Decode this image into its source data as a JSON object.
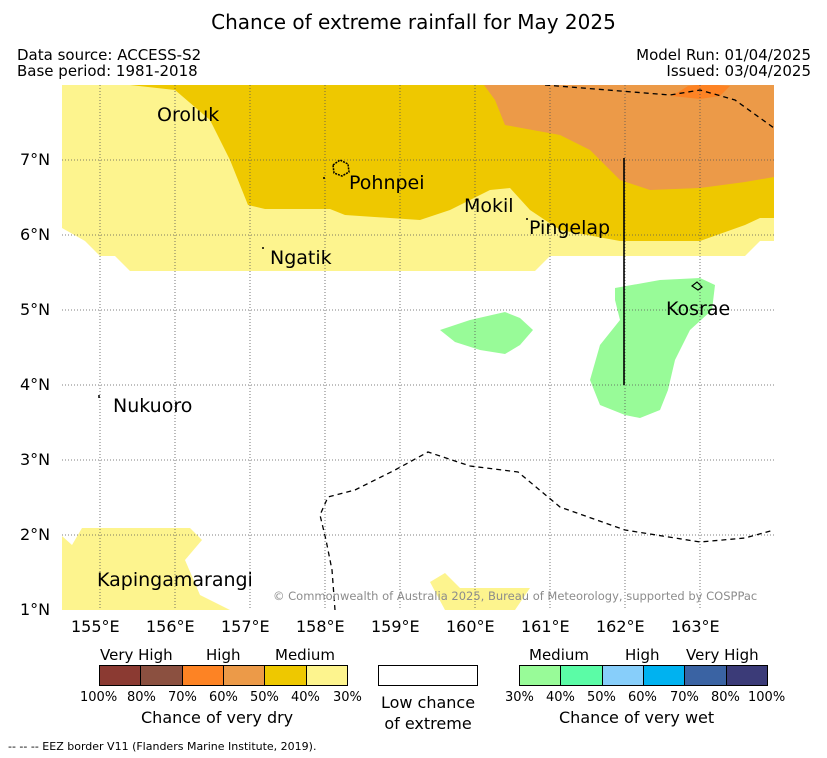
{
  "header": {
    "title": "Chance of extreme rainfall for May 2025",
    "data_source": "Data source: ACCESS-S2",
    "base_period": "Base period: 1981-2018",
    "model_run": "Model Run: 01/04/2025",
    "issued": "Issued: 03/04/2025"
  },
  "map": {
    "lat_labels": [
      "7°N",
      "6°N",
      "5°N",
      "4°N",
      "3°N",
      "2°N",
      "1°N"
    ],
    "lon_labels": [
      "155°E",
      "156°E",
      "157°E",
      "158°E",
      "159°E",
      "160°E",
      "161°E",
      "162°E",
      "163°E"
    ],
    "places": {
      "oroluk": "Oroluk",
      "pohnpei": "Pohnpei",
      "mokil": "Mokil",
      "pingelap": "Pingelap",
      "ngatik": "Ngatik",
      "kosrae": "Kosrae",
      "nukuoro": "Nukuoro",
      "kapingamarangi": "Kapingamarangi"
    },
    "credit": "© Commonwealth of Australia 2025, Bureau of Meteorology, supported by COSPPac",
    "colors": {
      "dry_70_plus": "#ec9a48",
      "dry_50_60": "#eec800",
      "dry_30_40": "#fdf48e",
      "wet_30_40": "#98fb98",
      "eez_border": "#000000"
    }
  },
  "legend_dry": {
    "headers": [
      "Very High",
      "High",
      "Medium"
    ],
    "ticks": [
      "100%",
      "80%",
      "70%",
      "60%",
      "50%",
      "40%",
      "30%"
    ],
    "title": "Chance of very dry",
    "colors": [
      "#8b3a32",
      "#8b5040",
      "#fd8324",
      "#ec9a48",
      "#eec800",
      "#fdf48e"
    ]
  },
  "legend_low": {
    "line1": "Low chance",
    "line2": "of extreme"
  },
  "legend_wet": {
    "headers": [
      "Medium",
      "High",
      "Very High"
    ],
    "ticks": [
      "30%",
      "40%",
      "50%",
      "60%",
      "70%",
      "80%",
      "100%"
    ],
    "title": "Chance of very wet",
    "colors": [
      "#98fb98",
      "#5bfca6",
      "#87cefa",
      "#00b2f0",
      "#3a63a3",
      "#3b3b78"
    ]
  },
  "footer": {
    "eez_note": "--  --  -- EEZ border V11 (Flanders Marine Institute, 2019)."
  }
}
